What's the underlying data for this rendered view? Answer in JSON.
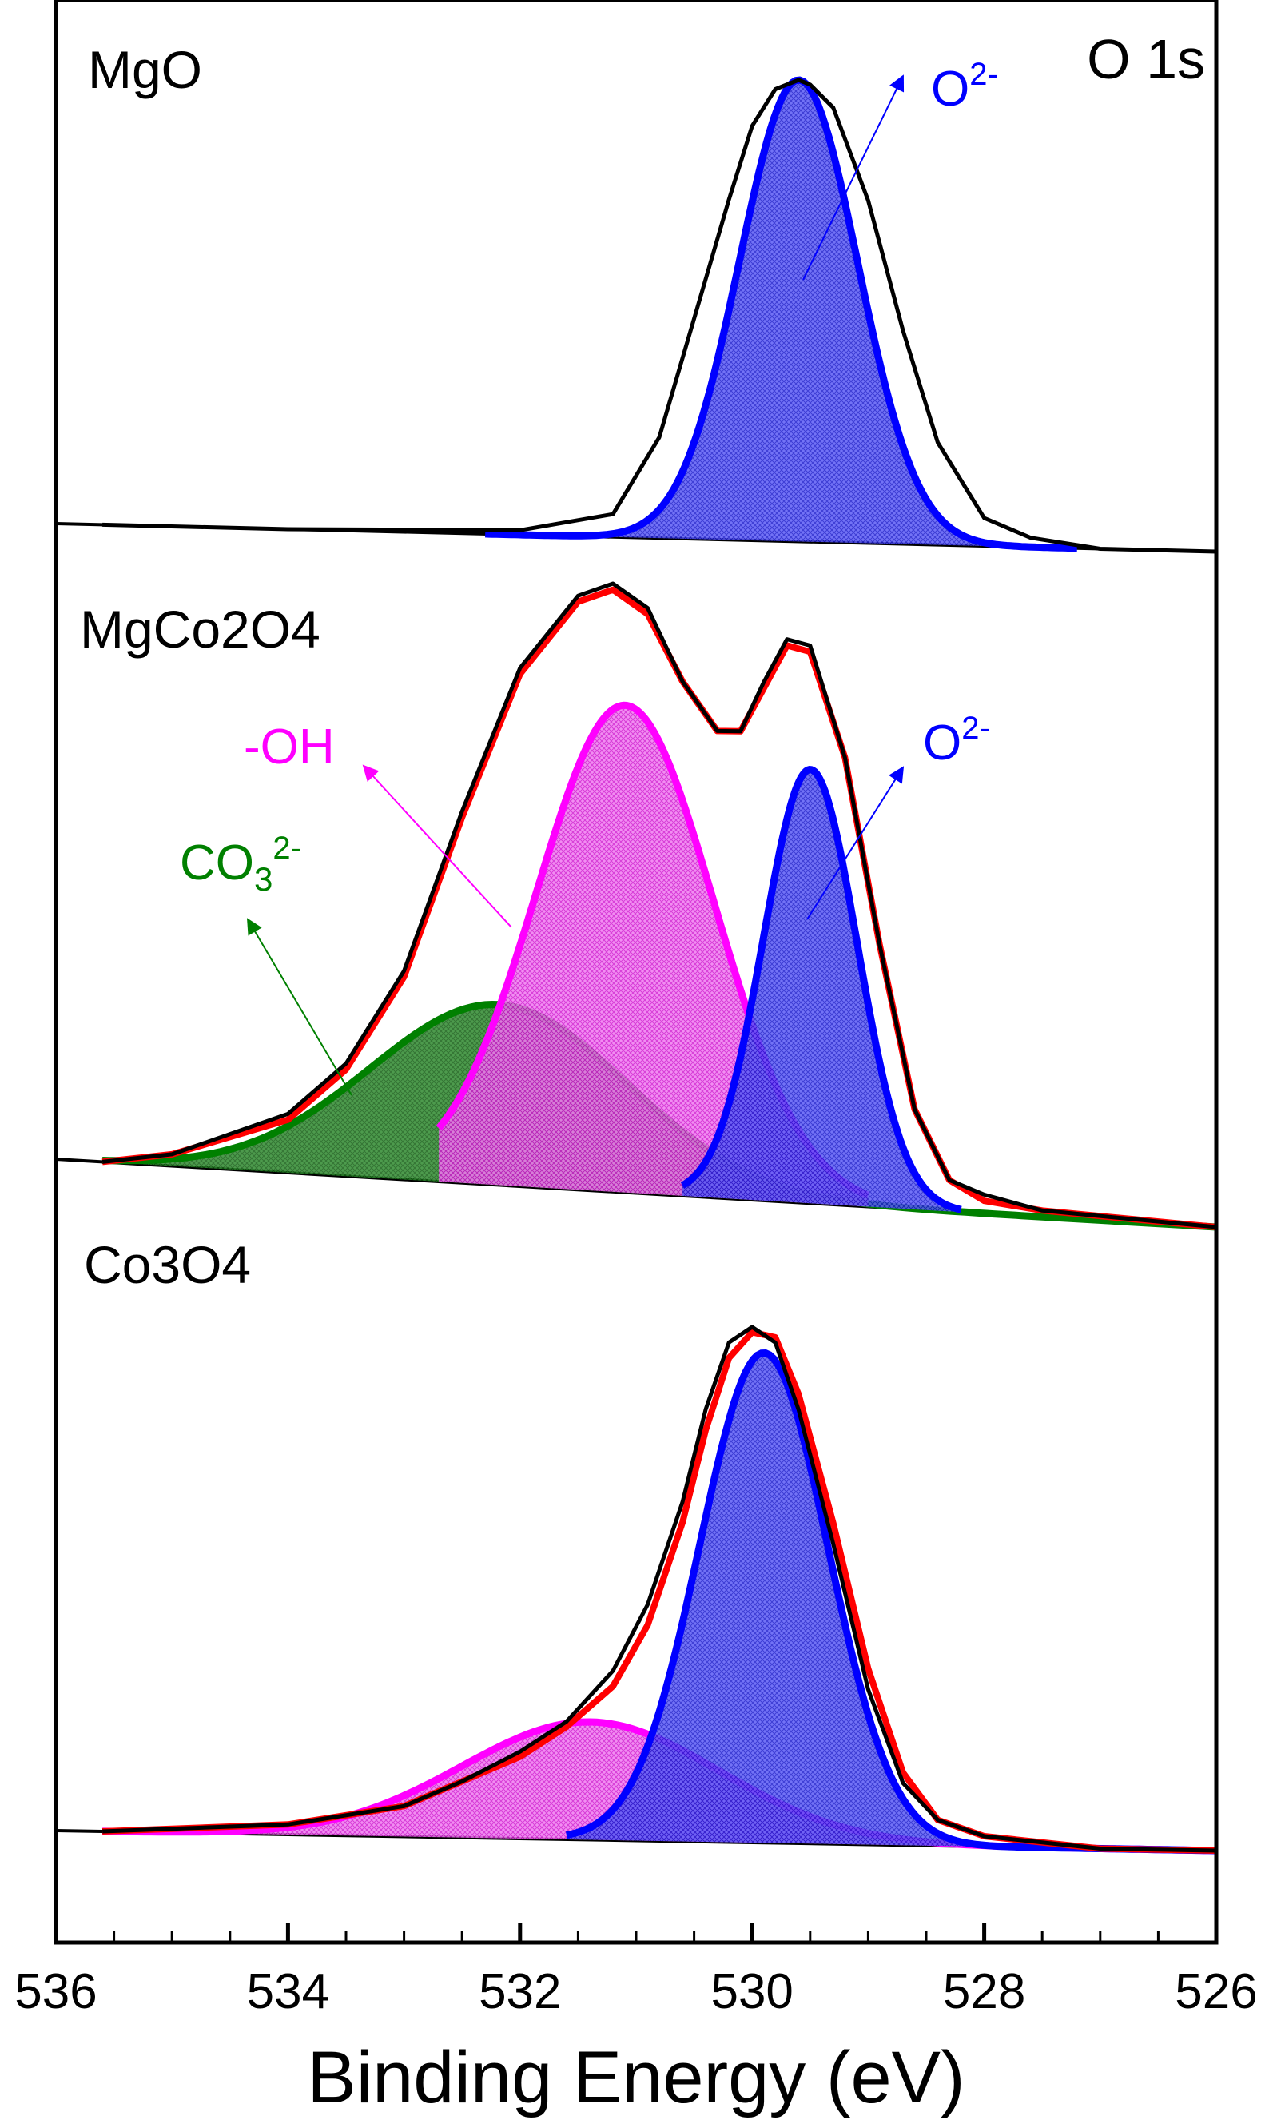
{
  "chart_data": {
    "type": "line",
    "title": "O 1s",
    "xlabel": "Binding Energy (eV)",
    "xlim": [
      536,
      526
    ],
    "x_ticks": [
      "536",
      "534",
      "532",
      "530",
      "528",
      "526"
    ],
    "x_reversed": true,
    "grid": false,
    "colors": {
      "measured": "#000000",
      "envelope": "#ff0000",
      "O2-": "#0000ff",
      "-OH": "#ff00ff",
      "CO3 2-": "#008000"
    },
    "panels": [
      {
        "label": "MgO",
        "series": [
          {
            "kind": "measured",
            "x": [
              535.6,
              534.0,
              532.0,
              531.2,
              530.8,
              530.5,
              530.2,
              530.0,
              529.8,
              529.6,
              529.5,
              529.3,
              529.0,
              528.7,
              528.4,
              528.0,
              527.6,
              527.0,
              526.0
            ],
            "y": [
              0.0,
              0.0,
              0.01,
              0.05,
              0.22,
              0.48,
              0.74,
              0.9,
              0.98,
              1.0,
              0.99,
              0.94,
              0.74,
              0.46,
              0.22,
              0.06,
              0.02,
              0.0,
              0.0
            ]
          },
          {
            "kind": "component",
            "name": "O2-",
            "center": 529.6,
            "fwhm": 1.2,
            "height": 1.0,
            "range": [
              532.3,
              527.2
            ]
          }
        ],
        "annotations": [
          {
            "text": "O",
            "superscript": "2-",
            "color": "#0000ff",
            "target": "O2-"
          }
        ]
      },
      {
        "label": "MgCo2O4",
        "series": [
          {
            "kind": "measured",
            "x": [
              535.6,
              535.0,
              534.0,
              533.5,
              533.0,
              532.5,
              532.0,
              531.5,
              531.2,
              530.9,
              530.6,
              530.3,
              530.1,
              529.9,
              529.7,
              529.5,
              529.2,
              528.9,
              528.6,
              528.3,
              528.0,
              527.5,
              526.0
            ],
            "y": [
              0.0,
              0.02,
              0.1,
              0.19,
              0.35,
              0.62,
              0.86,
              0.98,
              1.0,
              0.96,
              0.84,
              0.76,
              0.76,
              0.84,
              0.91,
              0.9,
              0.72,
              0.42,
              0.16,
              0.05,
              0.03,
              0.01,
              0.0
            ]
          },
          {
            "kind": "envelope",
            "x": [
              535.6,
              535.0,
              534.0,
              533.5,
              533.0,
              532.5,
              532.0,
              531.5,
              531.2,
              530.9,
              530.6,
              530.3,
              530.1,
              529.9,
              529.7,
              529.5,
              529.2,
              528.9,
              528.6,
              528.3,
              528.0,
              527.5,
              526.0
            ],
            "y": [
              0.0,
              0.02,
              0.09,
              0.18,
              0.34,
              0.61,
              0.85,
              0.97,
              0.99,
              0.95,
              0.84,
              0.76,
              0.76,
              0.83,
              0.9,
              0.89,
              0.72,
              0.42,
              0.16,
              0.05,
              0.02,
              0.01,
              0.0
            ]
          },
          {
            "kind": "component",
            "name": "CO3 2-",
            "center": 532.2,
            "fwhm": 2.6,
            "height": 0.3,
            "range": [
              535.6,
              526.0
            ]
          },
          {
            "kind": "component",
            "name": "-OH",
            "center": 531.1,
            "fwhm": 1.8,
            "height": 0.8,
            "range": [
              532.7,
              529.0
            ]
          },
          {
            "kind": "component",
            "name": "O2-",
            "center": 529.5,
            "fwhm": 0.95,
            "height": 0.7,
            "range": [
              530.6,
              528.2
            ]
          }
        ],
        "annotations": [
          {
            "text": "-OH",
            "superscript": "",
            "color": "#ff00ff",
            "target": "-OH"
          },
          {
            "text": "O",
            "superscript": "2-",
            "color": "#0000ff",
            "target": "O2-"
          },
          {
            "text": "CO",
            "subscript": "3",
            "superscript": "2-",
            "color": "#008000",
            "target": "CO3 2-"
          }
        ]
      },
      {
        "label": "Co3O4",
        "series": [
          {
            "kind": "measured",
            "x": [
              535.6,
              534.0,
              533.0,
              532.5,
              532.0,
              531.6,
              531.2,
              530.9,
              530.6,
              530.4,
              530.2,
              530.0,
              529.8,
              529.6,
              529.3,
              529.0,
              528.7,
              528.4,
              528.0,
              527.0,
              526.0
            ],
            "y": [
              0.0,
              0.02,
              0.06,
              0.11,
              0.17,
              0.23,
              0.33,
              0.46,
              0.66,
              0.84,
              0.97,
              1.0,
              0.97,
              0.84,
              0.58,
              0.3,
              0.12,
              0.05,
              0.02,
              0.0,
              0.0
            ]
          },
          {
            "kind": "envelope",
            "x": [
              535.6,
              534.0,
              533.0,
              532.5,
              532.0,
              531.6,
              531.2,
              530.9,
              530.6,
              530.4,
              530.2,
              530.0,
              529.8,
              529.6,
              529.3,
              529.0,
              528.7,
              528.4,
              528.0,
              527.0,
              526.0
            ],
            "y": [
              0.0,
              0.02,
              0.06,
              0.11,
              0.16,
              0.22,
              0.3,
              0.42,
              0.62,
              0.8,
              0.94,
              0.99,
              0.98,
              0.87,
              0.62,
              0.34,
              0.14,
              0.05,
              0.02,
              0.0,
              0.0
            ]
          },
          {
            "kind": "component",
            "name": "-OH",
            "center": 531.4,
            "fwhm": 2.6,
            "height": 0.23,
            "range": [
              535.6,
              526.0
            ]
          },
          {
            "kind": "component",
            "name": "O2-",
            "center": 529.9,
            "fwhm": 1.3,
            "height": 0.95,
            "range": [
              531.6,
              526.0
            ]
          }
        ],
        "annotations": []
      }
    ]
  }
}
